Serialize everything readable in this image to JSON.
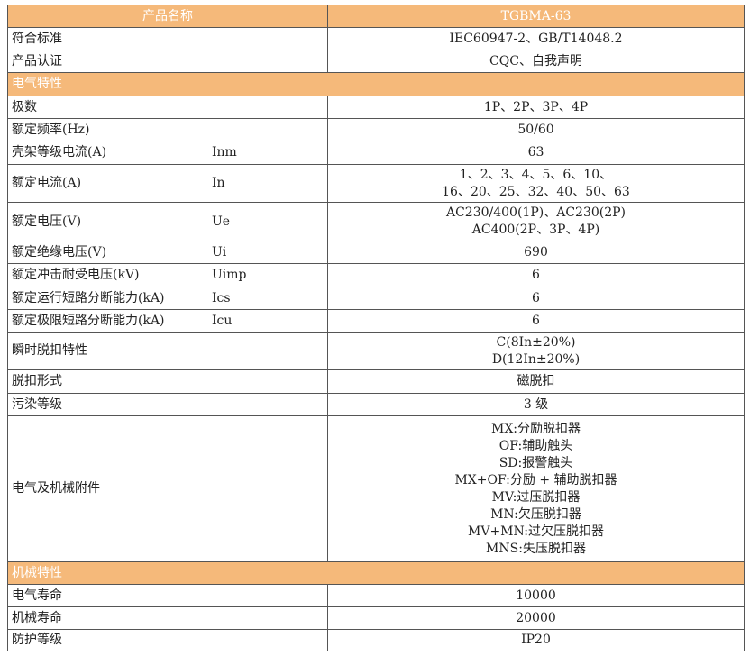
{
  "header": {
    "name_label": "产品名称",
    "model": "TGBMA-63"
  },
  "rows_top": [
    {
      "label": "符合标准",
      "value": "IEC60947-2、GB/T14048.2"
    },
    {
      "label": "产品认证",
      "value": "CQC、自我声明"
    }
  ],
  "section_electrical": "电气特性",
  "electrical": {
    "poles": {
      "label": "极数",
      "value": "1P、2P、3P、4P"
    },
    "freq": {
      "label": "额定频率(Hz)",
      "value": "50/60"
    },
    "frame": {
      "label": "壳架等级电流(A)",
      "symbol": "Inm",
      "value": "63"
    },
    "current": {
      "label": "额定电流(A)",
      "symbol": "In",
      "lines": [
        "1、2、3、4、5、6、10、",
        "16、20、25、32、40、50、63"
      ]
    },
    "voltage": {
      "label": "额定电压(V)",
      "symbol": "Ue",
      "lines": [
        "AC230/400(1P)、AC230(2P)",
        "AC400(2P、3P、4P)"
      ]
    },
    "insulation": {
      "label": "额定绝缘电压(V)",
      "symbol": "Ui",
      "value": "690"
    },
    "impulse": {
      "label": "额定冲击耐受电压(kV)",
      "symbol": "Uimp",
      "value": "6"
    },
    "ics": {
      "label": "额定运行短路分断能力(kA)",
      "symbol": "Ics",
      "value": "6"
    },
    "icu": {
      "label": "额定极限短路分断能力(kA)",
      "symbol": "Icu",
      "value": "6"
    },
    "instant": {
      "label": "瞬时脱扣特性",
      "lines": [
        "C(8In±20%)",
        "D(12In±20%)"
      ]
    },
    "trip": {
      "label": "脱扣形式",
      "value": "磁脱扣"
    },
    "pollution": {
      "label": "污染等级",
      "value": "3 级"
    },
    "accessories": {
      "label": "电气及机械附件",
      "lines": [
        "MX:分励脱扣器",
        "OF:辅助触头",
        "SD:报警触头",
        "MX+OF:分励 + 辅助脱扣器",
        "MV:过压脱扣器",
        "MN:欠压脱扣器",
        "MV+MN:过欠压脱扣器",
        "MNS:失压脱扣器"
      ]
    }
  },
  "section_mechanical": "机械特性",
  "mechanical": [
    {
      "label": "电气寿命",
      "value": "10000"
    },
    {
      "label": "机械寿命",
      "value": "20000"
    },
    {
      "label": "防护等级",
      "value": "IP20"
    }
  ]
}
